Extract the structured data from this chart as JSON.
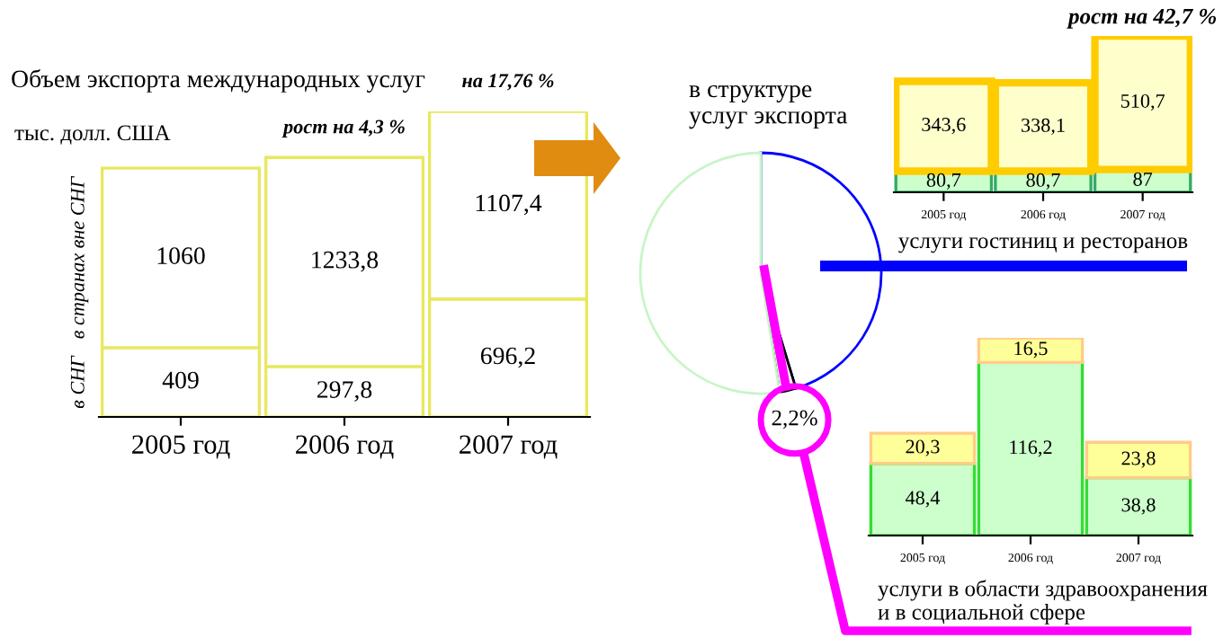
{
  "chart_data": [
    {
      "type": "bar",
      "title": "Объем экспорта международных услуг",
      "subtitle": "тыс. долл. США",
      "stacked": true,
      "categories": [
        "2005 год",
        "2006 год",
        "2007 год"
      ],
      "series": [
        {
          "name": "в СНГ",
          "color": "#ffffff",
          "values": [
            409,
            297.8,
            696.2
          ],
          "value_labels": [
            "409",
            "297,8",
            "696,2"
          ]
        },
        {
          "name": "в странах вне СНГ",
          "color": "#ffffff",
          "values": [
            1060,
            1233.8,
            1107.4
          ],
          "value_labels": [
            "1060",
            "1233,8",
            "1107,4"
          ]
        }
      ],
      "annotations": [
        {
          "text": "рост на 4,3 %",
          "x": "2006 год",
          "y": 1531.6
        },
        {
          "text": "на 17,76 %",
          "x": "2007 год",
          "y": 1803.6
        }
      ]
    },
    {
      "type": "pie",
      "title": "в структуре\nуслуг экспорта",
      "categories": [
        null,
        null,
        null
      ],
      "values": [
        45.3,
        2.2,
        52.5
      ],
      "colors": [
        "#0000ff",
        "#000000",
        "#c8f5c8"
      ],
      "value_labels": [
        null,
        "2,2%",
        null
      ]
    },
    {
      "type": "bar",
      "title": "услуги гостиниц и ресторанов",
      "stacked": true,
      "categories": [
        "2005 год",
        "2006 год",
        "2007 год"
      ],
      "series": [
        {
          "color": "#ccffcc",
          "values": [
            80.7,
            80.7,
            87
          ],
          "value_labels": [
            "80,7",
            "80,7",
            "87"
          ]
        },
        {
          "color": "#ffffcc",
          "values": [
            343.6,
            338.1,
            510.7
          ],
          "value_labels": [
            "343,6",
            "338,1",
            "510,7"
          ]
        }
      ],
      "annotations": [
        {
          "text": "рост на 42,7 %",
          "x": "2007 год",
          "y": 597.7
        }
      ]
    },
    {
      "type": "bar",
      "title": "услуги в области здравоохранения\nи в социальной сфере",
      "stacked": true,
      "categories": [
        "2005 год",
        "2006 год",
        "2007 год"
      ],
      "series": [
        {
          "color": "#ccffcc",
          "values": [
            48.4,
            116.2,
            38.8
          ],
          "value_labels": [
            "48,4",
            "116,2",
            "38,8"
          ]
        },
        {
          "color": "#ffff99",
          "values": [
            20.3,
            16.5,
            23.8
          ],
          "value_labels": [
            "20,3",
            "16,5",
            "23,8"
          ]
        }
      ]
    }
  ]
}
